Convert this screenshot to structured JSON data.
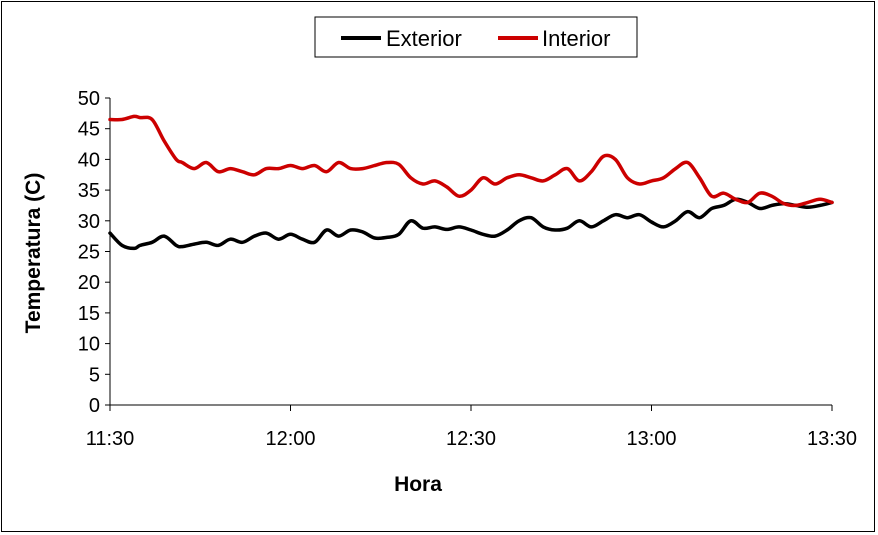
{
  "chart_data": {
    "type": "line",
    "title": "",
    "xlabel": "Hora",
    "ylabel": "Temperatura (C)",
    "xlim": [
      "11:30",
      "13:30"
    ],
    "ylim": [
      0,
      50
    ],
    "x_ticks": [
      "11:30",
      "12:00",
      "12:30",
      "13:00",
      "13:30"
    ],
    "y_ticks": [
      0,
      5,
      10,
      15,
      20,
      25,
      30,
      35,
      40,
      45,
      50
    ],
    "grid": false,
    "legend_position": "top-center",
    "series": [
      {
        "name": "Exterior",
        "color": "#000000",
        "x": [
          "11:30",
          "11:32",
          "11:34",
          "11:35",
          "11:37",
          "11:39",
          "11:41",
          "11:42",
          "11:44",
          "11:46",
          "11:48",
          "11:50",
          "11:52",
          "11:54",
          "11:56",
          "11:58",
          "12:00",
          "12:02",
          "12:04",
          "12:06",
          "12:08",
          "12:10",
          "12:12",
          "12:14",
          "12:16",
          "12:18",
          "12:20",
          "12:22",
          "12:24",
          "12:26",
          "12:28",
          "12:30",
          "12:32",
          "12:34",
          "12:36",
          "12:38",
          "12:40",
          "12:42",
          "12:44",
          "12:46",
          "12:48",
          "12:50",
          "12:52",
          "12:54",
          "12:56",
          "12:58",
          "13:00",
          "13:02",
          "13:04",
          "13:06",
          "13:08",
          "13:10",
          "13:12",
          "13:14",
          "13:16",
          "13:18",
          "13:20",
          "13:22",
          "13:24",
          "13:26",
          "13:28",
          "13:30"
        ],
        "y": [
          28.0,
          26.0,
          25.5,
          26.0,
          26.5,
          27.5,
          26.0,
          25.8,
          26.2,
          26.5,
          26.0,
          27.0,
          26.5,
          27.5,
          28.0,
          27.0,
          27.8,
          27.0,
          26.5,
          28.5,
          27.5,
          28.5,
          28.2,
          27.2,
          27.3,
          27.8,
          30.0,
          28.8,
          29.0,
          28.6,
          29.0,
          28.5,
          27.8,
          27.5,
          28.5,
          30.0,
          30.5,
          29.0,
          28.5,
          28.8,
          30.0,
          29.0,
          30.0,
          31.0,
          30.5,
          31.0,
          29.8,
          29.0,
          30.0,
          31.5,
          30.5,
          32.0,
          32.5,
          33.5,
          33.0,
          32.0,
          32.5,
          32.8,
          32.5,
          32.2,
          32.5,
          33.0
        ]
      },
      {
        "name": "Interior",
        "color": "#cc0000",
        "x": [
          "11:30",
          "11:32",
          "11:34",
          "11:35",
          "11:37",
          "11:39",
          "11:41",
          "11:42",
          "11:44",
          "11:46",
          "11:48",
          "11:50",
          "11:52",
          "11:54",
          "11:56",
          "11:58",
          "12:00",
          "12:02",
          "12:04",
          "12:06",
          "12:08",
          "12:10",
          "12:12",
          "12:14",
          "12:16",
          "12:18",
          "12:20",
          "12:22",
          "12:24",
          "12:26",
          "12:28",
          "12:30",
          "12:32",
          "12:34",
          "12:36",
          "12:38",
          "12:40",
          "12:42",
          "12:44",
          "12:46",
          "12:48",
          "12:50",
          "12:52",
          "12:54",
          "12:56",
          "12:58",
          "13:00",
          "13:02",
          "13:04",
          "13:06",
          "13:08",
          "13:10",
          "13:12",
          "13:14",
          "13:16",
          "13:18",
          "13:20",
          "13:22",
          "13:24",
          "13:26",
          "13:28",
          "13:30"
        ],
        "y": [
          46.5,
          46.5,
          47.0,
          46.8,
          46.5,
          43.0,
          40.0,
          39.5,
          38.5,
          39.5,
          38.0,
          38.5,
          38.0,
          37.5,
          38.5,
          38.5,
          39.0,
          38.5,
          39.0,
          38.0,
          39.5,
          38.5,
          38.5,
          39.0,
          39.5,
          39.2,
          37.0,
          36.0,
          36.5,
          35.5,
          34.0,
          35.0,
          37.0,
          36.0,
          37.0,
          37.5,
          37.0,
          36.5,
          37.5,
          38.5,
          36.5,
          38.0,
          40.5,
          40.0,
          37.0,
          36.0,
          36.5,
          37.0,
          38.5,
          39.5,
          37.0,
          34.0,
          34.5,
          33.5,
          33.0,
          34.5,
          34.0,
          32.8,
          32.5,
          33.0,
          33.5,
          33.0
        ]
      }
    ]
  }
}
